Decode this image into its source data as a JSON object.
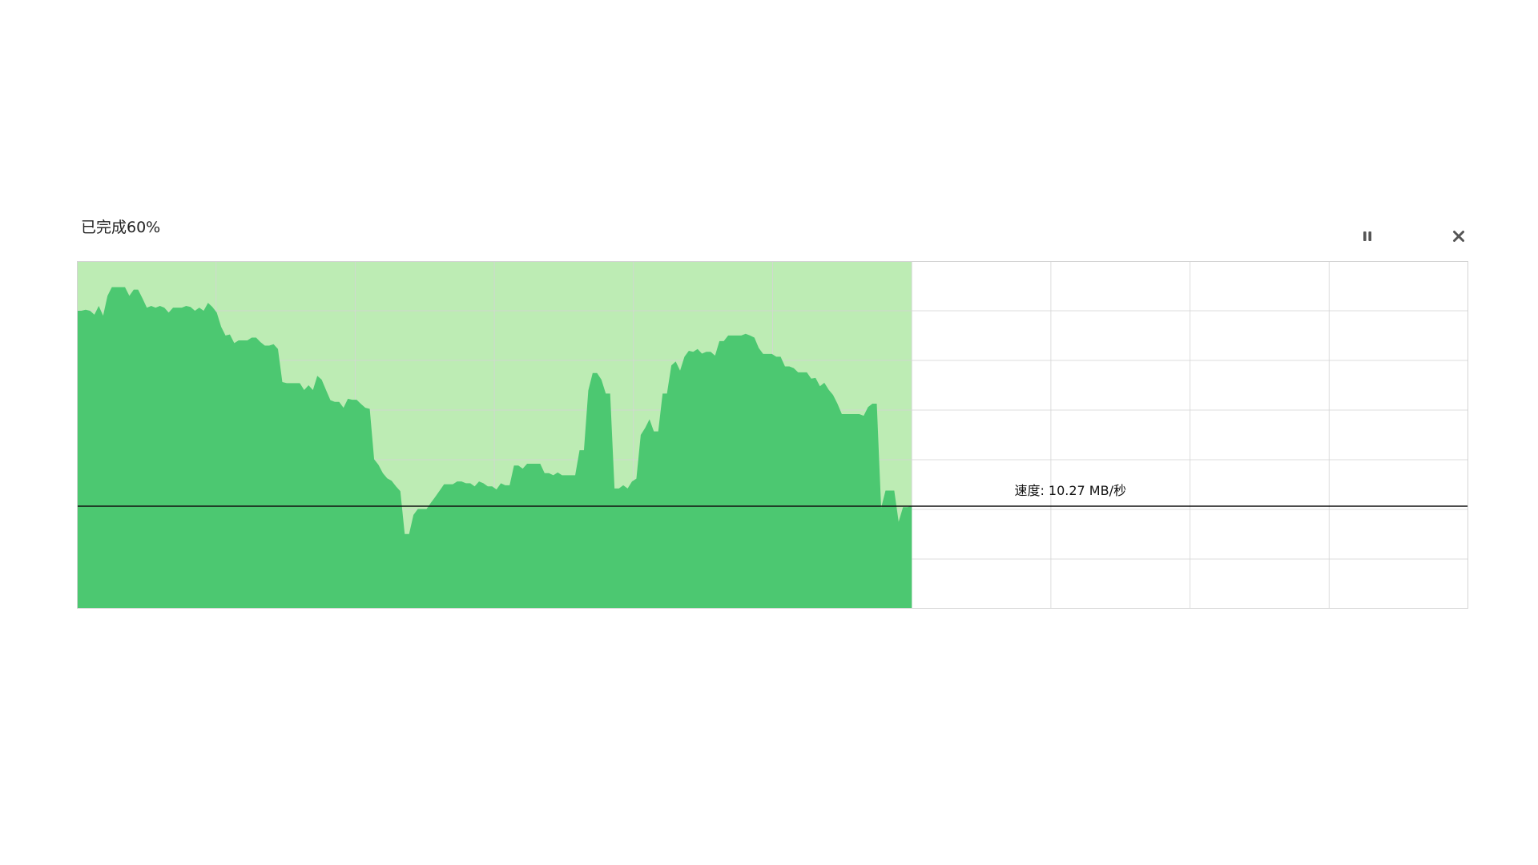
{
  "progress": {
    "label": "已完成60%",
    "fraction": 0.6
  },
  "controls": {
    "pause_icon": "pause-icon",
    "close_icon": "close-icon"
  },
  "speed": {
    "label": "速度: 10.27 MB/秒"
  },
  "colors": {
    "completed_bg": "#bdecb4",
    "series_fill": "#4cc871",
    "grid": "#d4d4d4",
    "current_line": "#111111",
    "icon": "#555555"
  },
  "chart_data": {
    "type": "area",
    "x_range": [
      0,
      1
    ],
    "y_range": [
      0,
      1
    ],
    "grid": true,
    "completed_fraction": 0.6,
    "current_speed_level": 0.295,
    "series": [
      {
        "values": [
          0.857,
          0.857,
          0.86,
          0.857,
          0.846,
          0.871,
          0.843,
          0.9,
          0.925,
          0.925,
          0.925,
          0.925,
          0.9,
          0.918,
          0.918,
          0.893,
          0.866,
          0.871,
          0.866,
          0.871,
          0.866,
          0.852,
          0.866,
          0.866,
          0.866,
          0.871,
          0.868,
          0.857,
          0.866,
          0.857,
          0.88,
          0.868,
          0.852,
          0.811,
          0.786,
          0.789,
          0.764,
          0.772,
          0.772,
          0.772,
          0.78,
          0.78,
          0.767,
          0.757,
          0.757,
          0.761,
          0.747,
          0.652,
          0.649,
          0.649,
          0.649,
          0.649,
          0.629,
          0.643,
          0.629,
          0.67,
          0.659,
          0.629,
          0.6,
          0.595,
          0.595,
          0.578,
          0.604,
          0.601,
          0.601,
          0.589,
          0.578,
          0.575,
          0.43,
          0.414,
          0.39,
          0.375,
          0.368,
          0.352,
          0.338,
          0.215,
          0.215,
          0.27,
          0.287,
          0.287,
          0.287,
          0.305,
          0.322,
          0.34,
          0.358,
          0.358,
          0.358,
          0.366,
          0.366,
          0.361,
          0.361,
          0.352,
          0.366,
          0.361,
          0.352,
          0.352,
          0.343,
          0.361,
          0.355,
          0.355,
          0.412,
          0.412,
          0.403,
          0.417,
          0.417,
          0.417,
          0.417,
          0.39,
          0.39,
          0.384,
          0.392,
          0.384,
          0.384,
          0.384,
          0.384,
          0.456,
          0.456,
          0.628,
          0.678,
          0.678,
          0.659,
          0.619,
          0.619,
          0.346,
          0.346,
          0.355,
          0.346,
          0.366,
          0.374,
          0.5,
          0.52,
          0.545,
          0.51,
          0.51,
          0.619,
          0.619,
          0.7,
          0.711,
          0.685,
          0.725,
          0.742,
          0.739,
          0.747,
          0.734,
          0.739,
          0.739,
          0.728,
          0.77,
          0.77,
          0.786,
          0.786,
          0.786,
          0.786,
          0.791,
          0.786,
          0.78,
          0.75,
          0.733,
          0.733,
          0.733,
          0.725,
          0.725,
          0.697,
          0.697,
          0.692,
          0.68,
          0.68,
          0.68,
          0.662,
          0.664,
          0.64,
          0.65,
          0.63,
          0.615,
          0.59,
          0.56,
          0.56,
          0.56,
          0.56,
          0.56,
          0.555,
          0.58,
          0.59,
          0.59,
          0.29,
          0.34,
          0.34,
          0.34,
          0.25,
          0.292,
          0.292,
          0.295
        ]
      }
    ]
  }
}
